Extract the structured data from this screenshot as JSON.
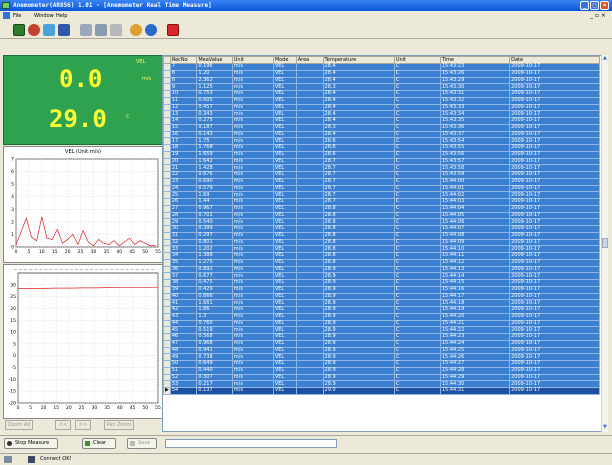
{
  "window": {
    "title": "Anemometer(AR856) 1.01 - [Anemometer Real Time Measure]"
  },
  "menu": [
    "File",
    "Window",
    "Help"
  ],
  "display": {
    "mode": "VEL",
    "value": "0.0",
    "unit": "m/s",
    "temp": "29.0",
    "temp_unit": "C"
  },
  "vel_chart": {
    "title": "VEL (Unit:m/s)"
  },
  "chart_data": [
    {
      "type": "line",
      "title": "VEL (Unit:m/s)",
      "x": [
        0,
        2,
        4,
        6,
        8,
        10,
        12,
        14,
        16,
        18,
        20,
        22,
        24,
        26,
        28,
        30,
        32,
        34,
        36,
        38,
        40,
        42,
        44,
        46,
        48,
        50,
        52,
        54
      ],
      "y": [
        0.2,
        1.2,
        2.3,
        0.8,
        0.5,
        2.4,
        0.7,
        0.6,
        1.4,
        0.3,
        0.6,
        1.0,
        0.2,
        1.3,
        0.4,
        0.1,
        0.6,
        0.3,
        0.2,
        0.5,
        0.1,
        0.4,
        0.7,
        0.2,
        0.5,
        0.3,
        0.1,
        0.1
      ],
      "xlim": [
        0,
        55
      ],
      "ylim": [
        0,
        7
      ],
      "xticks": [
        "0",
        "5",
        "10",
        "15",
        "20",
        "25",
        "30",
        "35",
        "40",
        "45",
        "50",
        "55"
      ],
      "yticks": [
        "0",
        "1",
        "2",
        "3",
        "4",
        "5",
        "6",
        "7"
      ],
      "color": "#e02020"
    },
    {
      "type": "line",
      "title": "",
      "x": [
        0,
        5,
        10,
        15,
        20,
        25,
        30,
        35,
        40,
        45,
        50,
        55
      ],
      "y": [
        28.4,
        28.4,
        28.5,
        28.6,
        28.6,
        28.7,
        28.7,
        28.8,
        28.9,
        28.9,
        28.9,
        29.0
      ],
      "xlim": [
        0,
        55
      ],
      "ylim": [
        -20,
        35
      ],
      "xticks": [
        "0",
        "5",
        "10",
        "15",
        "20",
        "25",
        "30",
        "35",
        "40",
        "45",
        "50",
        "55"
      ],
      "yticks": [
        "-20",
        "-15",
        "-10",
        "-5",
        "0",
        "5",
        "10",
        "15",
        "20",
        "25",
        "30"
      ],
      "color": "#e02020"
    }
  ],
  "table": {
    "headers": [
      "RecNo",
      "MeaValue",
      "Unit",
      "Mode",
      "Area",
      "Temperature",
      "Unit",
      "Time",
      "Date"
    ],
    "rows": [
      [
        "7",
        "0.196",
        "m/s",
        "VEL",
        "",
        "28.4",
        "C",
        "15:43:23",
        "2009-10-17"
      ],
      [
        "8",
        "1.20",
        "m/s",
        "VEL",
        "",
        "28.4",
        "C",
        "15:43:26",
        "2009-10-17"
      ],
      [
        "8",
        "2.362",
        "m/s",
        "VEL",
        "",
        "28.4",
        "C",
        "15:43:29",
        "2009-10-17"
      ],
      [
        "9",
        "1.125",
        "m/s",
        "VEL",
        "",
        "28.3",
        "C",
        "15:43:30",
        "2009-10-17"
      ],
      [
        "10",
        "0.753",
        "m/s",
        "VEL",
        "",
        "28.4",
        "C",
        "15:43:31",
        "2009-10-17"
      ],
      [
        "11",
        "0.605",
        "m/s",
        "VEL",
        "",
        "28.4",
        "C",
        "15:43:32",
        "2009-10-17"
      ],
      [
        "12",
        "0.457",
        "m/s",
        "VEL",
        "",
        "28.4",
        "C",
        "15:43:33",
        "2009-10-17"
      ],
      [
        "13",
        "0.343",
        "m/s",
        "VEL",
        "",
        "28.4",
        "C",
        "15:43:34",
        "2009-10-17"
      ],
      [
        "14",
        "0.275",
        "m/s",
        "VEL",
        "",
        "28.4",
        "C",
        "15:43:35",
        "2009-10-17"
      ],
      [
        "15",
        "0.187",
        "m/s",
        "VEL",
        "",
        "28.3",
        "C",
        "15:43:36",
        "2009-10-17"
      ],
      [
        "16",
        "0.143",
        "m/s",
        "VEL",
        "",
        "28.4",
        "C",
        "15:43:37",
        "2009-10-17"
      ],
      [
        "17",
        "1.75",
        "m/s",
        "VEL",
        "",
        "28.6",
        "C",
        "15:43:54",
        "2009-10-17"
      ],
      [
        "18",
        "1.768",
        "m/s",
        "VEL",
        "",
        "28.6",
        "C",
        "15:43:55",
        "2009-10-17"
      ],
      [
        "19",
        "1.659",
        "m/s",
        "VEL",
        "",
        "28.6",
        "C",
        "15:43:56",
        "2009-10-17"
      ],
      [
        "20",
        "1.642",
        "m/s",
        "VEL",
        "",
        "28.7",
        "C",
        "15:43:57",
        "2009-10-17"
      ],
      [
        "21",
        "1.428",
        "m/s",
        "VEL",
        "",
        "28.7",
        "C",
        "15:43:58",
        "2009-10-17"
      ],
      [
        "22",
        "0.876",
        "m/s",
        "VEL",
        "",
        "28.7",
        "C",
        "15:43:59",
        "2009-10-17"
      ],
      [
        "23",
        "0.690",
        "m/s",
        "VEL",
        "",
        "28.7",
        "C",
        "15:44:00",
        "2009-10-17"
      ],
      [
        "24",
        "0.579",
        "m/s",
        "VEL",
        "",
        "28.7",
        "C",
        "15:44:01",
        "2009-10-17"
      ],
      [
        "25",
        "1.69",
        "m/s",
        "VEL",
        "",
        "28.7",
        "C",
        "15:44:02",
        "2009-10-17"
      ],
      [
        "26",
        "1.44",
        "m/s",
        "VEL",
        "",
        "28.7",
        "C",
        "15:44:03",
        "2009-10-17"
      ],
      [
        "27",
        "0.967",
        "m/s",
        "VEL",
        "",
        "28.8",
        "C",
        "15:44:04",
        "2009-10-17"
      ],
      [
        "28",
        "0.701",
        "m/s",
        "VEL",
        "",
        "28.8",
        "C",
        "15:44:05",
        "2009-10-17"
      ],
      [
        "29",
        "0.540",
        "m/s",
        "VEL",
        "",
        "28.8",
        "C",
        "15:44:06",
        "2009-10-17"
      ],
      [
        "30",
        "0.399",
        "m/s",
        "VEL",
        "",
        "28.8",
        "C",
        "15:44:07",
        "2009-10-17"
      ],
      [
        "31",
        "0.297",
        "m/s",
        "VEL",
        "",
        "28.8",
        "C",
        "15:44:08",
        "2009-10-17"
      ],
      [
        "32",
        "0.801",
        "m/s",
        "VEL",
        "",
        "28.8",
        "C",
        "15:44:09",
        "2009-10-17"
      ],
      [
        "33",
        "1.202",
        "m/s",
        "VEL",
        "",
        "28.8",
        "C",
        "15:44:10",
        "2009-10-17"
      ],
      [
        "34",
        "1.388",
        "m/s",
        "VEL",
        "",
        "28.8",
        "C",
        "15:44:11",
        "2009-10-17"
      ],
      [
        "35",
        "1.275",
        "m/s",
        "VEL",
        "",
        "28.8",
        "C",
        "15:44:12",
        "2009-10-17"
      ],
      [
        "36",
        "0.892",
        "m/s",
        "VEL",
        "",
        "28.9",
        "C",
        "15:44:13",
        "2009-10-17"
      ],
      [
        "37",
        "0.677",
        "m/s",
        "VEL",
        "",
        "28.9",
        "C",
        "15:44:14",
        "2009-10-17"
      ],
      [
        "38",
        "0.475",
        "m/s",
        "VEL",
        "",
        "28.9",
        "C",
        "15:44:15",
        "2009-10-17"
      ],
      [
        "39",
        "0.429",
        "m/s",
        "VEL",
        "",
        "28.9",
        "C",
        "15:44:16",
        "2009-10-17"
      ],
      [
        "40",
        "0.666",
        "m/s",
        "VEL",
        "",
        "28.9",
        "C",
        "15:44:17",
        "2009-10-17"
      ],
      [
        "41",
        "1.661",
        "m/s",
        "VEL",
        "",
        "28.9",
        "C",
        "15:44:18",
        "2009-10-17"
      ],
      [
        "42",
        "1.86",
        "m/s",
        "VEL",
        "",
        "28.9",
        "C",
        "15:44:19",
        "2009-10-17"
      ],
      [
        "43",
        "1.3",
        "m/s",
        "VEL",
        "",
        "28.9",
        "C",
        "15:44:20",
        "2009-10-17"
      ],
      [
        "44",
        "0.760",
        "m/s",
        "VEL",
        "",
        "28.9",
        "C",
        "15:44:21",
        "2009-10-17"
      ],
      [
        "45",
        "0.519",
        "m/s",
        "VEL",
        "",
        "28.9",
        "C",
        "15:44:22",
        "2009-10-17"
      ],
      [
        "46",
        "0.568",
        "m/s",
        "VEL",
        "",
        "28.9",
        "C",
        "15:44:23",
        "2009-10-17"
      ],
      [
        "47",
        "0.968",
        "m/s",
        "VEL",
        "",
        "28.9",
        "C",
        "15:44:24",
        "2009-10-17"
      ],
      [
        "48",
        "0.941",
        "m/s",
        "VEL",
        "",
        "28.9",
        "C",
        "15:44:25",
        "2009-10-17"
      ],
      [
        "49",
        "0.738",
        "m/s",
        "VEL",
        "",
        "28.9",
        "C",
        "15:44:26",
        "2009-10-17"
      ],
      [
        "50",
        "0.649",
        "m/s",
        "VEL",
        "",
        "28.9",
        "C",
        "15:44:27",
        "2009-10-17"
      ],
      [
        "51",
        "0.440",
        "m/s",
        "VEL",
        "",
        "28.9",
        "C",
        "15:44:28",
        "2009-10-17"
      ],
      [
        "52",
        "0.307",
        "m/s",
        "VEL",
        "",
        "28.9",
        "C",
        "15:44:29",
        "2009-10-17"
      ],
      [
        "53",
        "0.217",
        "m/s",
        "VEL",
        "",
        "28.9",
        "C",
        "15:44:30",
        "2009-10-17"
      ],
      [
        "54",
        "0.137",
        "m/s",
        "VEL",
        "",
        "29.0",
        "C",
        "15:44:31",
        "2009-10-17"
      ]
    ]
  },
  "nav": {
    "zoom": "Zoom All",
    "prev": "<<",
    "next": ">>",
    "pan": "Pan Zoom"
  },
  "buttons": {
    "stop": "Stop Measure",
    "clear": "Clear",
    "save": "Save"
  },
  "status": {
    "connect": "Connect OK!"
  },
  "colors": {
    "title": "#0a56d8",
    "display_bg": "#2fa24f",
    "digits": "#ffff33",
    "row_bg": "#3a7fd0",
    "line": "#e02020"
  }
}
